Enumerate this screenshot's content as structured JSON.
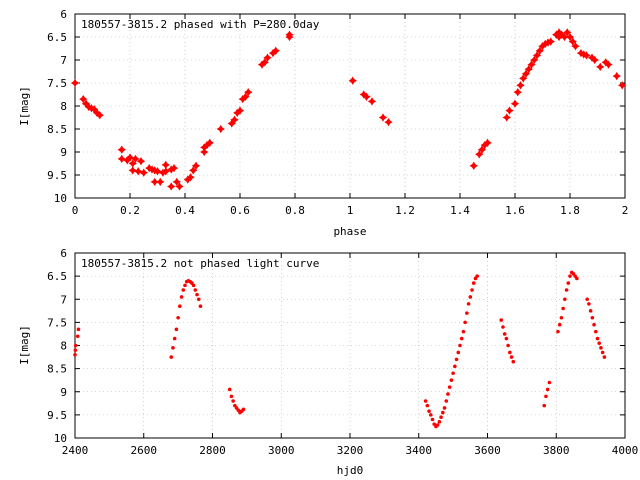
{
  "chart_data": [
    {
      "type": "scatter",
      "title": "180557-3815.2 phased with P=280.0day",
      "xlabel": "phase",
      "ylabel": "I[mag]",
      "xlim": [
        0,
        2
      ],
      "ylim": [
        10,
        6
      ],
      "y_inverted": true,
      "grid": true,
      "marker": "star",
      "xticks": [
        "0",
        "0.2",
        "0.4",
        "0.6",
        "0.8",
        "1",
        "1.2",
        "1.4",
        "1.6",
        "1.8",
        "2"
      ],
      "yticks": [
        "6",
        "6.5",
        "7",
        "7.5",
        "8",
        "8.5",
        "9",
        "9.5",
        "10"
      ],
      "series": [
        {
          "color": "#ff0000",
          "points": [
            [
              0.0,
              7.5
            ],
            [
              0.03,
              7.85
            ],
            [
              0.04,
              7.95
            ],
            [
              0.05,
              8.02
            ],
            [
              0.06,
              8.05
            ],
            [
              0.07,
              8.07
            ],
            [
              0.08,
              8.15
            ],
            [
              0.09,
              8.2
            ],
            [
              0.17,
              8.95
            ],
            [
              0.17,
              9.15
            ],
            [
              0.19,
              9.18
            ],
            [
              0.2,
              9.12
            ],
            [
              0.21,
              9.25
            ],
            [
              0.21,
              9.4
            ],
            [
              0.22,
              9.15
            ],
            [
              0.23,
              9.42
            ],
            [
              0.24,
              9.2
            ],
            [
              0.25,
              9.45
            ],
            [
              0.27,
              9.35
            ],
            [
              0.28,
              9.38
            ],
            [
              0.29,
              9.4
            ],
            [
              0.29,
              9.65
            ],
            [
              0.3,
              9.42
            ],
            [
              0.31,
              9.65
            ],
            [
              0.32,
              9.45
            ],
            [
              0.33,
              9.42
            ],
            [
              0.33,
              9.28
            ],
            [
              0.35,
              9.38
            ],
            [
              0.35,
              9.75
            ],
            [
              0.36,
              9.35
            ],
            [
              0.37,
              9.65
            ],
            [
              0.38,
              9.75
            ],
            [
              0.41,
              9.6
            ],
            [
              0.42,
              9.55
            ],
            [
              0.43,
              9.4
            ],
            [
              0.44,
              9.3
            ],
            [
              0.47,
              9.0
            ],
            [
              0.47,
              8.9
            ],
            [
              0.48,
              8.85
            ],
            [
              0.49,
              8.8
            ],
            [
              0.53,
              8.5
            ],
            [
              0.57,
              8.38
            ],
            [
              0.58,
              8.3
            ],
            [
              0.59,
              8.15
            ],
            [
              0.6,
              8.1
            ],
            [
              0.61,
              7.85
            ],
            [
              0.62,
              7.8
            ],
            [
              0.63,
              7.7
            ],
            [
              0.68,
              7.1
            ],
            [
              0.69,
              7.05
            ],
            [
              0.7,
              6.95
            ],
            [
              0.72,
              6.85
            ],
            [
              0.73,
              6.8
            ],
            [
              0.78,
              6.5
            ],
            [
              0.78,
              6.45
            ],
            [
              1.01,
              7.45
            ],
            [
              1.05,
              7.75
            ],
            [
              1.06,
              7.8
            ],
            [
              1.08,
              7.9
            ],
            [
              1.12,
              8.25
            ],
            [
              1.14,
              8.35
            ],
            [
              1.45,
              9.3
            ],
            [
              1.47,
              9.05
            ],
            [
              1.48,
              8.95
            ],
            [
              1.49,
              8.85
            ],
            [
              1.5,
              8.8
            ],
            [
              1.57,
              8.25
            ],
            [
              1.58,
              8.1
            ],
            [
              1.6,
              7.95
            ],
            [
              1.61,
              7.7
            ],
            [
              1.62,
              7.55
            ],
            [
              1.63,
              7.4
            ],
            [
              1.64,
              7.3
            ],
            [
              1.65,
              7.2
            ],
            [
              1.66,
              7.1
            ],
            [
              1.67,
              7.0
            ],
            [
              1.68,
              6.9
            ],
            [
              1.69,
              6.8
            ],
            [
              1.7,
              6.7
            ],
            [
              1.71,
              6.65
            ],
            [
              1.72,
              6.62
            ],
            [
              1.73,
              6.6
            ],
            [
              1.75,
              6.45
            ],
            [
              1.76,
              6.5
            ],
            [
              1.76,
              6.4
            ],
            [
              1.77,
              6.45
            ],
            [
              1.78,
              6.5
            ],
            [
              1.79,
              6.4
            ],
            [
              1.8,
              6.5
            ],
            [
              1.81,
              6.6
            ],
            [
              1.82,
              6.7
            ],
            [
              1.84,
              6.85
            ],
            [
              1.85,
              6.88
            ],
            [
              1.86,
              6.9
            ],
            [
              1.88,
              6.95
            ],
            [
              1.89,
              7.0
            ],
            [
              1.91,
              7.15
            ],
            [
              1.93,
              7.05
            ],
            [
              1.94,
              7.1
            ],
            [
              1.97,
              7.35
            ],
            [
              1.99,
              7.55
            ]
          ]
        }
      ]
    },
    {
      "type": "scatter",
      "title": "180557-3815.2 not phased light curve",
      "xlabel": "hjd0",
      "ylabel": "I[mag]",
      "xlim": [
        2400,
        4000
      ],
      "ylim": [
        10,
        6
      ],
      "y_inverted": true,
      "grid": true,
      "marker": "dot",
      "xticks": [
        "2400",
        "2600",
        "2800",
        "3000",
        "3200",
        "3400",
        "3600",
        "3800",
        "4000"
      ],
      "yticks": [
        "6",
        "6.5",
        "7",
        "7.5",
        "8",
        "8.5",
        "9",
        "9.5",
        "10"
      ],
      "series": [
        {
          "color": "#ff0000",
          "points": [
            [
              2400,
              8.2
            ],
            [
              2401,
              8.1
            ],
            [
              2402,
              8.0
            ],
            [
              2408,
              7.8
            ],
            [
              2410,
              7.65
            ],
            [
              2680,
              8.25
            ],
            [
              2685,
              8.05
            ],
            [
              2690,
              7.85
            ],
            [
              2695,
              7.65
            ],
            [
              2700,
              7.4
            ],
            [
              2705,
              7.15
            ],
            [
              2710,
              6.95
            ],
            [
              2715,
              6.8
            ],
            [
              2720,
              6.7
            ],
            [
              2725,
              6.62
            ],
            [
              2730,
              6.6
            ],
            [
              2735,
              6.62
            ],
            [
              2740,
              6.65
            ],
            [
              2745,
              6.7
            ],
            [
              2750,
              6.8
            ],
            [
              2755,
              6.9
            ],
            [
              2760,
              7.0
            ],
            [
              2765,
              7.15
            ],
            [
              2850,
              8.95
            ],
            [
              2855,
              9.1
            ],
            [
              2860,
              9.2
            ],
            [
              2865,
              9.3
            ],
            [
              2870,
              9.35
            ],
            [
              2875,
              9.4
            ],
            [
              2880,
              9.45
            ],
            [
              2885,
              9.42
            ],
            [
              2890,
              9.38
            ],
            [
              3420,
              9.2
            ],
            [
              3425,
              9.3
            ],
            [
              3430,
              9.42
            ],
            [
              3435,
              9.5
            ],
            [
              3440,
              9.6
            ],
            [
              3445,
              9.7
            ],
            [
              3450,
              9.75
            ],
            [
              3455,
              9.72
            ],
            [
              3460,
              9.65
            ],
            [
              3465,
              9.55
            ],
            [
              3470,
              9.45
            ],
            [
              3475,
              9.35
            ],
            [
              3480,
              9.2
            ],
            [
              3485,
              9.05
            ],
            [
              3490,
              8.9
            ],
            [
              3495,
              8.75
            ],
            [
              3500,
              8.6
            ],
            [
              3505,
              8.45
            ],
            [
              3510,
              8.3
            ],
            [
              3515,
              8.15
            ],
            [
              3520,
              8.0
            ],
            [
              3525,
              7.85
            ],
            [
              3530,
              7.7
            ],
            [
              3535,
              7.5
            ],
            [
              3540,
              7.3
            ],
            [
              3545,
              7.1
            ],
            [
              3550,
              6.95
            ],
            [
              3555,
              6.8
            ],
            [
              3560,
              6.65
            ],
            [
              3565,
              6.55
            ],
            [
              3570,
              6.5
            ],
            [
              3640,
              7.45
            ],
            [
              3645,
              7.6
            ],
            [
              3650,
              7.75
            ],
            [
              3655,
              7.85
            ],
            [
              3660,
              8.0
            ],
            [
              3665,
              8.15
            ],
            [
              3670,
              8.25
            ],
            [
              3675,
              8.35
            ],
            [
              3765,
              9.3
            ],
            [
              3770,
              9.1
            ],
            [
              3775,
              8.95
            ],
            [
              3780,
              8.8
            ],
            [
              3805,
              7.7
            ],
            [
              3810,
              7.55
            ],
            [
              3815,
              7.4
            ],
            [
              3820,
              7.2
            ],
            [
              3825,
              7.0
            ],
            [
              3830,
              6.8
            ],
            [
              3835,
              6.65
            ],
            [
              3840,
              6.5
            ],
            [
              3845,
              6.42
            ],
            [
              3850,
              6.45
            ],
            [
              3855,
              6.5
            ],
            [
              3860,
              6.55
            ],
            [
              3890,
              7.0
            ],
            [
              3895,
              7.1
            ],
            [
              3900,
              7.25
            ],
            [
              3905,
              7.4
            ],
            [
              3910,
              7.55
            ],
            [
              3915,
              7.7
            ],
            [
              3920,
              7.85
            ],
            [
              3925,
              7.95
            ],
            [
              3930,
              8.05
            ],
            [
              3935,
              8.15
            ],
            [
              3940,
              8.25
            ]
          ]
        }
      ]
    }
  ]
}
